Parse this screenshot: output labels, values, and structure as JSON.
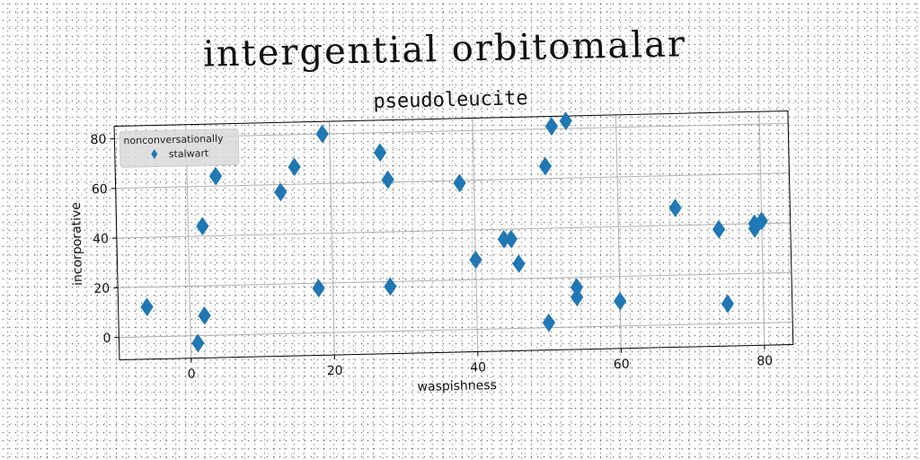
{
  "figure": {
    "suptitle": "intergential orbitomalar"
  },
  "colors": {
    "marker": "#1f77b4",
    "grid": "#b0b0b0",
    "axis": "#000000",
    "legend_bg": "#d9d9d9"
  },
  "chart_data": {
    "type": "scatter",
    "title": "pseudoleucite",
    "xlabel": "waspishness",
    "ylabel": "incorporative",
    "xlim": [
      -10,
      84
    ],
    "ylim": [
      -9,
      85
    ],
    "xticks": [
      0,
      20,
      40,
      60,
      80
    ],
    "yticks": [
      0,
      20,
      40,
      60,
      80
    ],
    "grid": true,
    "marker": "thin-diamond",
    "legend": {
      "title": "nonconversationally",
      "placement": "top-left"
    },
    "series": [
      {
        "name": "stalwart",
        "points": [
          {
            "x": -6,
            "y": 12
          },
          {
            "x": 1,
            "y": -3
          },
          {
            "x": 2,
            "y": 8
          },
          {
            "x": 2,
            "y": 44
          },
          {
            "x": 4,
            "y": 64
          },
          {
            "x": 13,
            "y": 57
          },
          {
            "x": 15,
            "y": 67
          },
          {
            "x": 18,
            "y": 18
          },
          {
            "x": 19,
            "y": 80
          },
          {
            "x": 27,
            "y": 72
          },
          {
            "x": 28,
            "y": 61
          },
          {
            "x": 28,
            "y": 18
          },
          {
            "x": 38,
            "y": 59
          },
          {
            "x": 40,
            "y": 28
          },
          {
            "x": 44,
            "y": 36
          },
          {
            "x": 45,
            "y": 36
          },
          {
            "x": 46,
            "y": 26
          },
          {
            "x": 50,
            "y": 65
          },
          {
            "x": 50,
            "y": 2
          },
          {
            "x": 51,
            "y": 81
          },
          {
            "x": 53,
            "y": 83
          },
          {
            "x": 54,
            "y": 16
          },
          {
            "x": 54,
            "y": 12
          },
          {
            "x": 60,
            "y": 10
          },
          {
            "x": 68,
            "y": 47
          },
          {
            "x": 74,
            "y": 38
          },
          {
            "x": 75,
            "y": 8
          },
          {
            "x": 79,
            "y": 38
          },
          {
            "x": 79,
            "y": 40
          },
          {
            "x": 80,
            "y": 41
          }
        ]
      }
    ]
  }
}
